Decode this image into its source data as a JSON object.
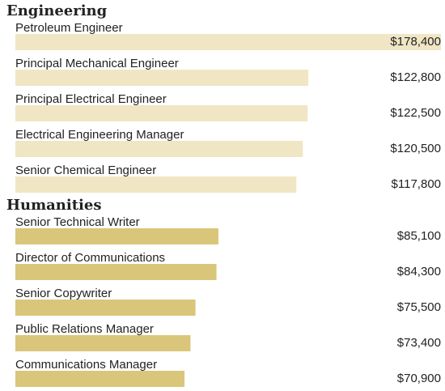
{
  "chart_data": [
    {
      "type": "bar",
      "title": "Engineering",
      "color": "#f0e6c4",
      "categories": [
        "Petroleum Engineer",
        "Principal Mechanical Engineer",
        "Principal Electrical Engineer",
        "Electrical Engineering Manager",
        "Senior Chemical Engineer"
      ],
      "values": [
        178400,
        122800,
        122500,
        120500,
        117800
      ],
      "value_labels": [
        "$178,400",
        "$122,800",
        "$122,500",
        "$120,500",
        "$117,800"
      ]
    },
    {
      "type": "bar",
      "title": "Humanities",
      "color": "#d9c67a",
      "categories": [
        "Senior Technical Writer",
        "Director of Communications",
        "Senior Copywriter",
        "Public Relations Manager",
        "Communications Manager"
      ],
      "values": [
        85100,
        84300,
        75500,
        73400,
        70900
      ],
      "value_labels": [
        "$85,100",
        "$84,300",
        "$75,500",
        "$73,400",
        "$70,900"
      ]
    }
  ]
}
